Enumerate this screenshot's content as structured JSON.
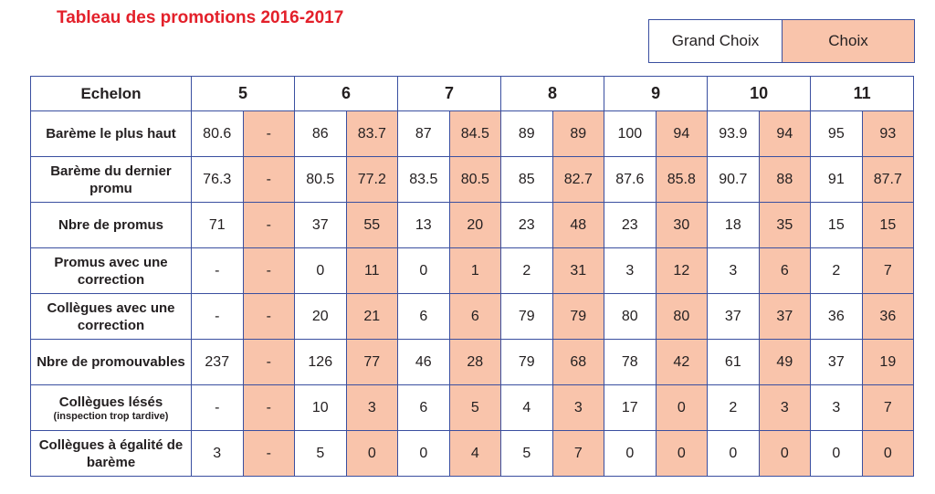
{
  "title": "Tableau des promotions 2016-2017",
  "legend": {
    "grand_choix": "Grand Choix",
    "choix": "Choix"
  },
  "colors": {
    "title": "#e3202a",
    "choix_fill": "#f9c4ab",
    "border": "#3a4fa0"
  },
  "table": {
    "corner": "Echelon",
    "echelons": [
      "5",
      "6",
      "7",
      "8",
      "9",
      "10",
      "11"
    ],
    "rows": [
      {
        "label": "Barème le plus haut",
        "sub": "",
        "values": [
          "80.6",
          "-",
          "86",
          "83.7",
          "87",
          "84.5",
          "89",
          "89",
          "100",
          "94",
          "93.9",
          "94",
          "95",
          "93"
        ]
      },
      {
        "label": "Barème du dernier promu",
        "sub": "",
        "values": [
          "76.3",
          "-",
          "80.5",
          "77.2",
          "83.5",
          "80.5",
          "85",
          "82.7",
          "87.6",
          "85.8",
          "90.7",
          "88",
          "91",
          "87.7"
        ]
      },
      {
        "label": "Nbre de promus",
        "sub": "",
        "values": [
          "71",
          "-",
          "37",
          "55",
          "13",
          "20",
          "23",
          "48",
          "23",
          "30",
          "18",
          "35",
          "15",
          "15"
        ]
      },
      {
        "label": "Promus avec une correction",
        "sub": "",
        "values": [
          "-",
          "-",
          "0",
          "11",
          "0",
          "1",
          "2",
          "31",
          "3",
          "12",
          "3",
          "6",
          "2",
          "7"
        ]
      },
      {
        "label": "Collègues avec une correction",
        "sub": "",
        "values": [
          "-",
          "-",
          "20",
          "21",
          "6",
          "6",
          "79",
          "79",
          "80",
          "80",
          "37",
          "37",
          "36",
          "36"
        ]
      },
      {
        "label": "Nbre de promouvables",
        "sub": "",
        "values": [
          "237",
          "-",
          "126",
          "77",
          "46",
          "28",
          "79",
          "68",
          "78",
          "42",
          "61",
          "49",
          "37",
          "19"
        ]
      },
      {
        "label": "Collègues lésés",
        "sub": "(inspection trop tardive)",
        "values": [
          "-",
          "-",
          "10",
          "3",
          "6",
          "5",
          "4",
          "3",
          "17",
          "0",
          "2",
          "3",
          "3",
          "7"
        ]
      },
      {
        "label": "Collègues à égalité de barème",
        "sub": "",
        "values": [
          "3",
          "-",
          "5",
          "0",
          "0",
          "4",
          "5",
          "7",
          "0",
          "0",
          "0",
          "0",
          "0",
          "0"
        ]
      }
    ]
  }
}
